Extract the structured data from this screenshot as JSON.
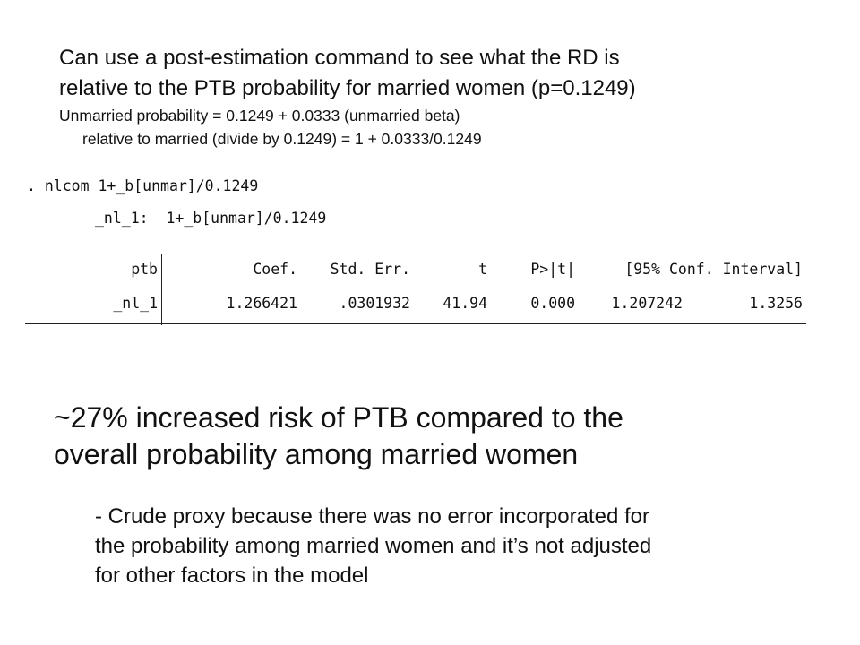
{
  "intro": {
    "line1": "Can use a post-estimation command to see what the RD is",
    "line2": "relative to the PTB probability for married women (p=0.1249)",
    "line3": "Unmarried probability = 0.1249 + 0.0333 (unmarried beta)",
    "line4": "relative to married (divide by 0.1249) = 1 + 0.0333/0.1249"
  },
  "stata": {
    "command": ". nlcom 1+_b[unmar]/0.1249",
    "nl_definition": "_nl_1:  1+_b[unmar]/0.1249",
    "table": {
      "headers": {
        "depvar": "ptb",
        "coef": "Coef.",
        "stderr": "Std. Err.",
        "t": "t",
        "p": "P>|t|",
        "ci": "[95% Conf. Interval]"
      },
      "rows": [
        {
          "name": "_nl_1",
          "coef": "1.266421",
          "stderr": ".0301932",
          "t": "41.94",
          "p": "0.000",
          "ci_low": "1.207242",
          "ci_high": "1.3256"
        }
      ]
    }
  },
  "conclusion": {
    "line1": "~27% increased risk of PTB compared to the",
    "line2": "overall probability among married women"
  },
  "note": {
    "line1": "- Crude proxy because there was no error incorporated for",
    "line2": "the probability among married women and it’s not adjusted",
    "line3": "for other factors in the model"
  }
}
